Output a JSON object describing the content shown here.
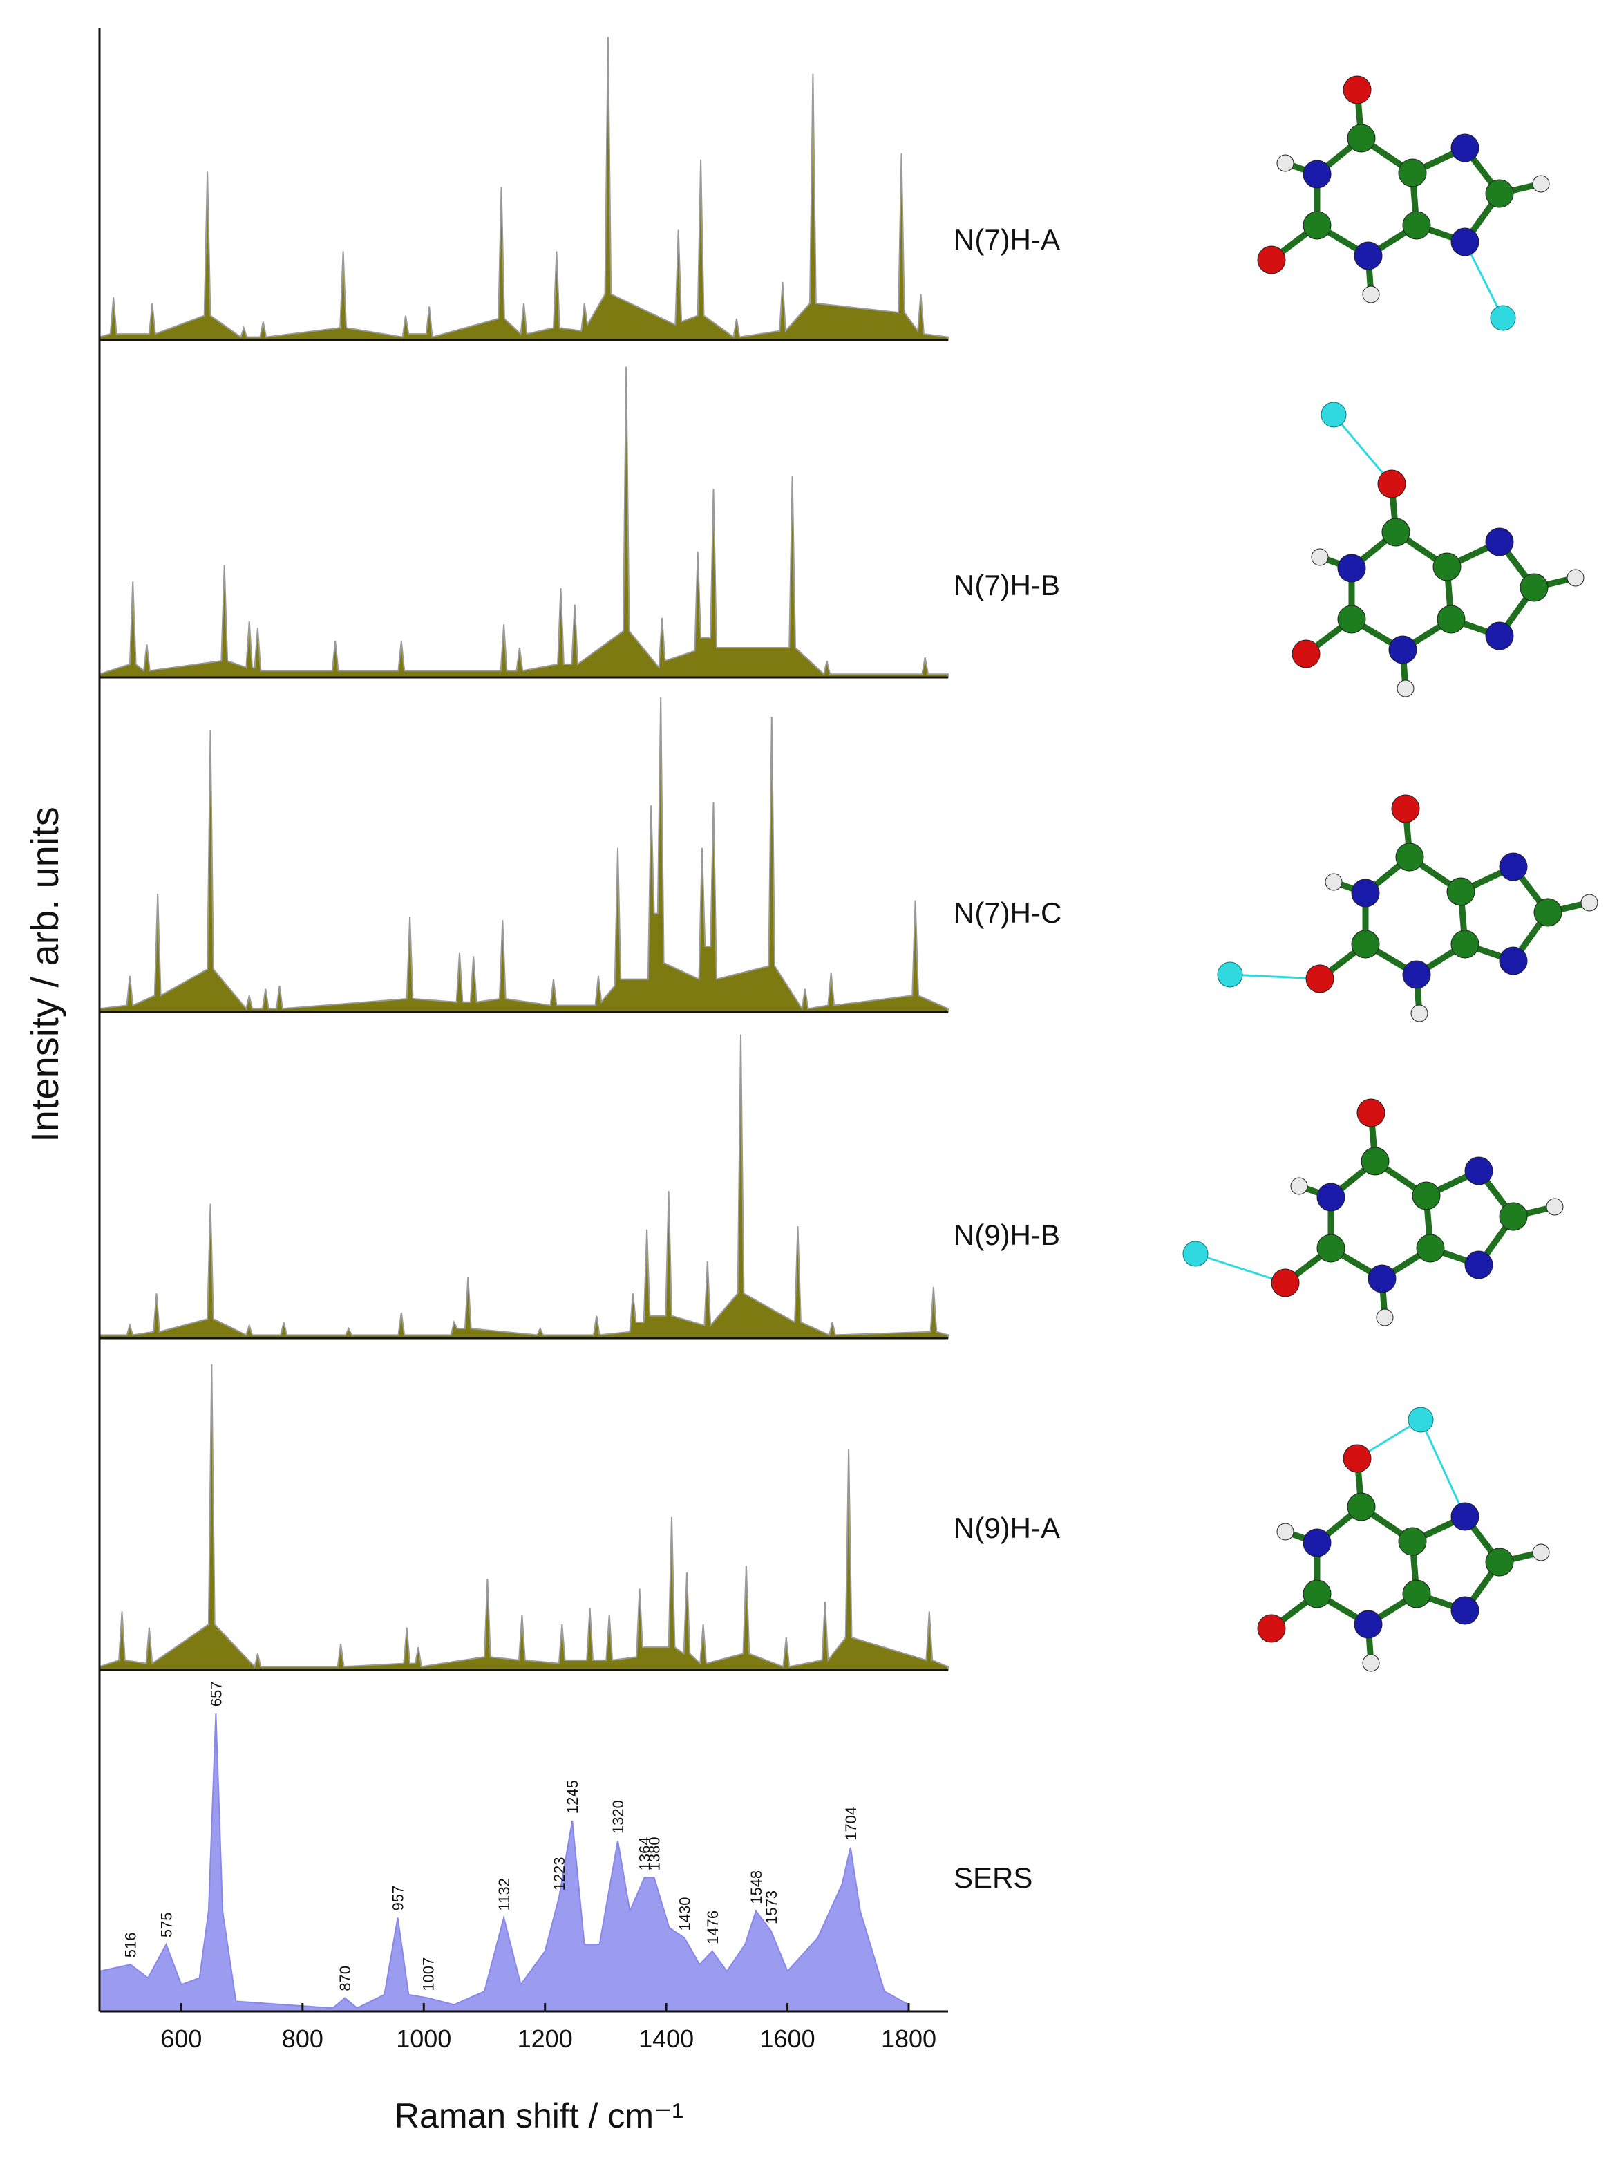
{
  "chart_data": [
    {
      "type": "area",
      "label": "N(7)H-A",
      "color": "#7d7a12",
      "outline": "#9a9a9a",
      "xlim": [
        465,
        1865
      ],
      "ylim": [
        0,
        1
      ],
      "x": [
        465,
        483,
        488,
        493,
        547,
        552,
        557,
        638,
        643,
        648,
        698,
        703,
        708,
        730,
        735,
        740,
        862,
        867,
        872,
        965,
        970,
        975,
        1004,
        1009,
        1014,
        1123,
        1128,
        1133,
        1160,
        1165,
        1170,
        1214,
        1219,
        1224,
        1260,
        1265,
        1270,
        1299,
        1304,
        1309,
        1415,
        1420,
        1425,
        1452,
        1457,
        1462,
        1511,
        1516,
        1521,
        1587,
        1592,
        1597,
        1637,
        1642,
        1647,
        1783,
        1788,
        1793,
        1815,
        1820,
        1825,
        1865
      ],
      "values": [
        0.01,
        0.02,
        0.14,
        0.02,
        0.02,
        0.12,
        0.02,
        0.08,
        0.55,
        0.08,
        0.01,
        0.04,
        0.01,
        0.01,
        0.06,
        0.01,
        0.04,
        0.29,
        0.04,
        0.01,
        0.08,
        0.02,
        0.02,
        0.11,
        0.01,
        0.07,
        0.5,
        0.07,
        0.02,
        0.12,
        0.02,
        0.04,
        0.29,
        0.04,
        0.03,
        0.12,
        0.05,
        0.15,
        0.99,
        0.15,
        0.05,
        0.36,
        0.06,
        0.08,
        0.59,
        0.08,
        0.01,
        0.07,
        0.01,
        0.03,
        0.19,
        0.03,
        0.12,
        0.87,
        0.12,
        0.09,
        0.61,
        0.09,
        0.03,
        0.15,
        0.02,
        0.01
      ]
    },
    {
      "type": "area",
      "label": "N(7)H-B",
      "color": "#7d7a12",
      "outline": "#9a9a9a",
      "xlim": [
        465,
        1865
      ],
      "ylim": [
        0,
        1
      ],
      "x": [
        465,
        515,
        520,
        525,
        538,
        543,
        548,
        666,
        671,
        676,
        707,
        712,
        717,
        721,
        726,
        731,
        849,
        854,
        859,
        958,
        963,
        968,
        1127,
        1132,
        1137,
        1153,
        1158,
        1163,
        1221,
        1226,
        1231,
        1244,
        1249,
        1254,
        1329,
        1334,
        1339,
        1388,
        1393,
        1398,
        1447,
        1452,
        1457,
        1473,
        1478,
        1483,
        1603,
        1608,
        1613,
        1660,
        1665,
        1670,
        1822,
        1827,
        1832,
        1865
      ],
      "values": [
        0.01,
        0.04,
        0.29,
        0.04,
        0.02,
        0.1,
        0.02,
        0.05,
        0.34,
        0.05,
        0.03,
        0.17,
        0.03,
        0.03,
        0.15,
        0.02,
        0.02,
        0.11,
        0.02,
        0.02,
        0.11,
        0.02,
        0.02,
        0.16,
        0.02,
        0.02,
        0.09,
        0.02,
        0.04,
        0.27,
        0.04,
        0.04,
        0.22,
        0.04,
        0.14,
        0.94,
        0.14,
        0.03,
        0.18,
        0.05,
        0.08,
        0.38,
        0.12,
        0.12,
        0.57,
        0.09,
        0.09,
        0.61,
        0.09,
        0.01,
        0.05,
        0.01,
        0.01,
        0.06,
        0.01,
        0.01
      ]
    },
    {
      "type": "area",
      "label": "N(7)H-C",
      "color": "#7d7a12",
      "outline": "#9a9a9a",
      "xlim": [
        465,
        1865
      ],
      "ylim": [
        0,
        1
      ],
      "x": [
        465,
        510,
        515,
        520,
        556,
        561,
        566,
        643,
        648,
        653,
        707,
        712,
        717,
        734,
        739,
        744,
        757,
        762,
        767,
        972,
        977,
        982,
        1054,
        1059,
        1064,
        1077,
        1082,
        1087,
        1125,
        1130,
        1135,
        1209,
        1214,
        1219,
        1283,
        1288,
        1293,
        1315,
        1320,
        1325,
        1370,
        1375,
        1380,
        1386,
        1391,
        1396,
        1454,
        1459,
        1464,
        1473,
        1478,
        1483,
        1569,
        1574,
        1579,
        1624,
        1629,
        1634,
        1667,
        1672,
        1677,
        1806,
        1811,
        1816,
        1865
      ],
      "values": [
        0.01,
        0.02,
        0.11,
        0.02,
        0.05,
        0.36,
        0.05,
        0.13,
        0.86,
        0.13,
        0.01,
        0.05,
        0.01,
        0.01,
        0.07,
        0.01,
        0.01,
        0.08,
        0.01,
        0.04,
        0.29,
        0.04,
        0.03,
        0.18,
        0.03,
        0.03,
        0.17,
        0.03,
        0.04,
        0.28,
        0.04,
        0.02,
        0.1,
        0.02,
        0.02,
        0.11,
        0.03,
        0.08,
        0.5,
        0.1,
        0.1,
        0.63,
        0.3,
        0.3,
        0.96,
        0.15,
        0.1,
        0.5,
        0.2,
        0.2,
        0.64,
        0.1,
        0.14,
        0.9,
        0.14,
        0.01,
        0.07,
        0.01,
        0.02,
        0.12,
        0.02,
        0.05,
        0.34,
        0.05,
        0.01
      ]
    },
    {
      "type": "area",
      "label": "N(9)H-B",
      "color": "#7d7a12",
      "outline": "#9a9a9a",
      "xlim": [
        465,
        1865
      ],
      "ylim": [
        0,
        1
      ],
      "x": [
        465,
        510,
        515,
        520,
        554,
        559,
        564,
        643,
        648,
        653,
        707,
        712,
        717,
        764,
        769,
        774,
        871,
        876,
        881,
        958,
        963,
        968,
        1045,
        1050,
        1055,
        1068,
        1073,
        1078,
        1187,
        1192,
        1197,
        1280,
        1285,
        1290,
        1340,
        1345,
        1350,
        1363,
        1368,
        1373,
        1399,
        1404,
        1409,
        1463,
        1468,
        1473,
        1518,
        1523,
        1528,
        1612,
        1617,
        1622,
        1669,
        1674,
        1679,
        1836,
        1841,
        1846,
        1865
      ],
      "values": [
        0.01,
        0.01,
        0.04,
        0.01,
        0.02,
        0.14,
        0.02,
        0.06,
        0.42,
        0.06,
        0.01,
        0.04,
        0.01,
        0.01,
        0.05,
        0.01,
        0.01,
        0.03,
        0.01,
        0.01,
        0.08,
        0.01,
        0.01,
        0.05,
        0.03,
        0.03,
        0.19,
        0.03,
        0.01,
        0.03,
        0.01,
        0.01,
        0.07,
        0.01,
        0.02,
        0.14,
        0.05,
        0.05,
        0.34,
        0.07,
        0.07,
        0.46,
        0.07,
        0.04,
        0.24,
        0.04,
        0.14,
        0.95,
        0.14,
        0.05,
        0.35,
        0.05,
        0.01,
        0.05,
        0.01,
        0.02,
        0.16,
        0.02,
        0.01
      ]
    },
    {
      "type": "area",
      "label": "N(9)H-A",
      "color": "#7d7a12",
      "outline": "#9a9a9a",
      "xlim": [
        465,
        1865
      ],
      "ylim": [
        0,
        1
      ],
      "x": [
        465,
        497,
        502,
        507,
        542,
        547,
        552,
        645,
        650,
        655,
        721,
        726,
        731,
        858,
        863,
        868,
        967,
        972,
        977,
        986,
        991,
        996,
        1100,
        1105,
        1110,
        1157,
        1162,
        1167,
        1223,
        1228,
        1233,
        1269,
        1274,
        1279,
        1301,
        1306,
        1311,
        1351,
        1356,
        1361,
        1404,
        1409,
        1414,
        1429,
        1434,
        1439,
        1456,
        1461,
        1466,
        1527,
        1532,
        1537,
        1593,
        1598,
        1603,
        1657,
        1662,
        1667,
        1696,
        1701,
        1706,
        1829,
        1834,
        1839,
        1865
      ],
      "values": [
        0.01,
        0.03,
        0.18,
        0.03,
        0.02,
        0.13,
        0.02,
        0.14,
        0.94,
        0.14,
        0.01,
        0.05,
        0.01,
        0.01,
        0.08,
        0.01,
        0.02,
        0.13,
        0.02,
        0.02,
        0.07,
        0.01,
        0.04,
        0.28,
        0.04,
        0.03,
        0.17,
        0.03,
        0.02,
        0.14,
        0.03,
        0.03,
        0.19,
        0.03,
        0.03,
        0.17,
        0.03,
        0.04,
        0.25,
        0.07,
        0.07,
        0.47,
        0.07,
        0.05,
        0.3,
        0.05,
        0.02,
        0.14,
        0.02,
        0.05,
        0.32,
        0.05,
        0.01,
        0.1,
        0.01,
        0.03,
        0.21,
        0.03,
        0.1,
        0.68,
        0.1,
        0.03,
        0.18,
        0.03,
        0.01
      ]
    },
    {
      "type": "area",
      "label": "SERS",
      "color": "#9b9bf0",
      "outline": "#8888e8",
      "xlim": [
        465,
        1865
      ],
      "ylim": [
        0,
        1
      ],
      "x": [
        465,
        516,
        545,
        575,
        600,
        630,
        645,
        657,
        668,
        690,
        850,
        870,
        890,
        935,
        957,
        975,
        1007,
        1050,
        1100,
        1132,
        1160,
        1200,
        1223,
        1245,
        1265,
        1290,
        1320,
        1340,
        1364,
        1380,
        1405,
        1430,
        1455,
        1476,
        1500,
        1530,
        1548,
        1573,
        1600,
        1650,
        1690,
        1704,
        1720,
        1760,
        1800
      ],
      "values": [
        0.12,
        0.14,
        0.1,
        0.2,
        0.08,
        0.1,
        0.3,
        0.89,
        0.3,
        0.03,
        0.01,
        0.04,
        0.01,
        0.05,
        0.28,
        0.05,
        0.04,
        0.02,
        0.06,
        0.28,
        0.08,
        0.18,
        0.34,
        0.57,
        0.2,
        0.2,
        0.51,
        0.3,
        0.4,
        0.4,
        0.25,
        0.22,
        0.14,
        0.18,
        0.12,
        0.2,
        0.3,
        0.24,
        0.12,
        0.22,
        0.38,
        0.49,
        0.3,
        0.06,
        0.02
      ],
      "peak_labels": [
        516,
        575,
        657,
        870,
        957,
        1007,
        1132,
        1223,
        1245,
        1320,
        1364,
        1380,
        1430,
        1476,
        1548,
        1573,
        1704
      ],
      "xticks": [
        600,
        800,
        1000,
        1200,
        1400,
        1600,
        1800
      ],
      "xlabel": "Raman shift / cm⁻¹",
      "ylabel": "Intensity / arb. units"
    }
  ]
}
